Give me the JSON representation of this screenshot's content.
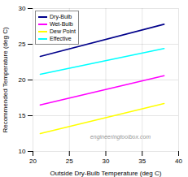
{
  "chart_data": {
    "type": "line",
    "xlabel": "Outside Dry-Bulb Temperature (deg C)",
    "ylabel": "Recommended Temperature (deg C)",
    "x": [
      21,
      38
    ],
    "series": [
      {
        "name": "Dry-Bulb",
        "color": "#00008B",
        "values": [
          23.3,
          27.8
        ]
      },
      {
        "name": "Wet-Bulb",
        "color": "#ff00ff",
        "values": [
          16.5,
          20.6
        ]
      },
      {
        "name": "Dew Point",
        "color": "#ffff00",
        "values": [
          12.5,
          16.7
        ]
      },
      {
        "name": "Effective",
        "color": "#00ffff",
        "values": [
          20.8,
          24.4
        ]
      }
    ],
    "xlim": [
      20,
      40
    ],
    "ylim": [
      10,
      30
    ],
    "xticks": [
      20,
      25,
      30,
      35,
      40
    ],
    "yticks": [
      10,
      15,
      20,
      25,
      30
    ],
    "grid": true,
    "legend": "upper left",
    "annotations": [
      "engineeringtoolbox.com"
    ]
  }
}
